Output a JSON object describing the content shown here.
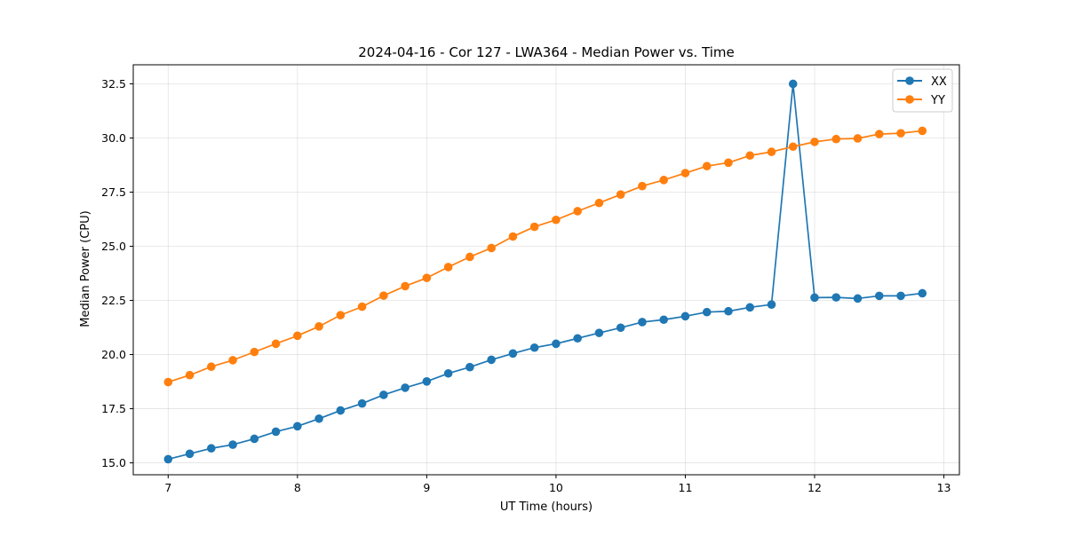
{
  "chart_data": {
    "type": "line",
    "title": "2024-04-16 - Cor 127 - LWA364 - Median Power vs. Time",
    "xlabel": "UT Time (hours)",
    "ylabel": "Median Power (CPU)",
    "xlim": [
      6.73,
      13.12
    ],
    "ylim": [
      14.45,
      33.38
    ],
    "xticks": [
      7,
      8,
      9,
      10,
      11,
      12,
      13
    ],
    "xtick_labels": [
      "7",
      "8",
      "9",
      "10",
      "11",
      "12",
      "13"
    ],
    "yticks": [
      15.0,
      17.5,
      20.0,
      22.5,
      25.0,
      27.5,
      30.0,
      32.5
    ],
    "ytick_labels": [
      "15.0",
      "17.5",
      "20.0",
      "22.5",
      "25.0",
      "27.5",
      "30.0",
      "32.5"
    ],
    "grid": true,
    "legend_position": "top-right",
    "x": [
      7.0,
      7.1667,
      7.3333,
      7.5,
      7.6667,
      7.8333,
      8.0,
      8.1667,
      8.3333,
      8.5,
      8.6667,
      8.8333,
      9.0,
      9.1667,
      9.3333,
      9.5,
      9.6667,
      9.8333,
      10.0,
      10.1667,
      10.3333,
      10.5,
      10.6667,
      10.8333,
      11.0,
      11.1667,
      11.3333,
      11.5,
      11.6667,
      11.8333,
      12.0,
      12.1667,
      12.3333,
      12.5,
      12.6667,
      12.8333
    ],
    "series": [
      {
        "name": "XX",
        "color": "#1f77b4",
        "values": [
          15.17,
          15.42,
          15.67,
          15.84,
          16.11,
          16.44,
          16.69,
          17.04,
          17.42,
          17.74,
          18.14,
          18.47,
          18.76,
          19.13,
          19.42,
          19.76,
          20.05,
          20.32,
          20.5,
          20.75,
          21.0,
          21.24,
          21.5,
          21.61,
          21.77,
          21.96,
          22.0,
          22.18,
          22.31,
          32.5,
          22.63,
          22.64,
          22.59,
          22.71,
          22.71,
          22.83
        ]
      },
      {
        "name": "YY",
        "color": "#ff7f0e",
        "values": [
          18.73,
          19.05,
          19.44,
          19.74,
          20.12,
          20.5,
          20.87,
          21.3,
          21.82,
          22.21,
          22.72,
          23.16,
          23.54,
          24.04,
          24.51,
          24.92,
          25.45,
          25.9,
          26.22,
          26.62,
          27.0,
          27.39,
          27.78,
          28.06,
          28.38,
          28.7,
          28.86,
          29.19,
          29.36,
          29.6,
          29.82,
          29.95,
          29.98,
          30.18,
          30.22,
          30.33
        ]
      }
    ]
  }
}
